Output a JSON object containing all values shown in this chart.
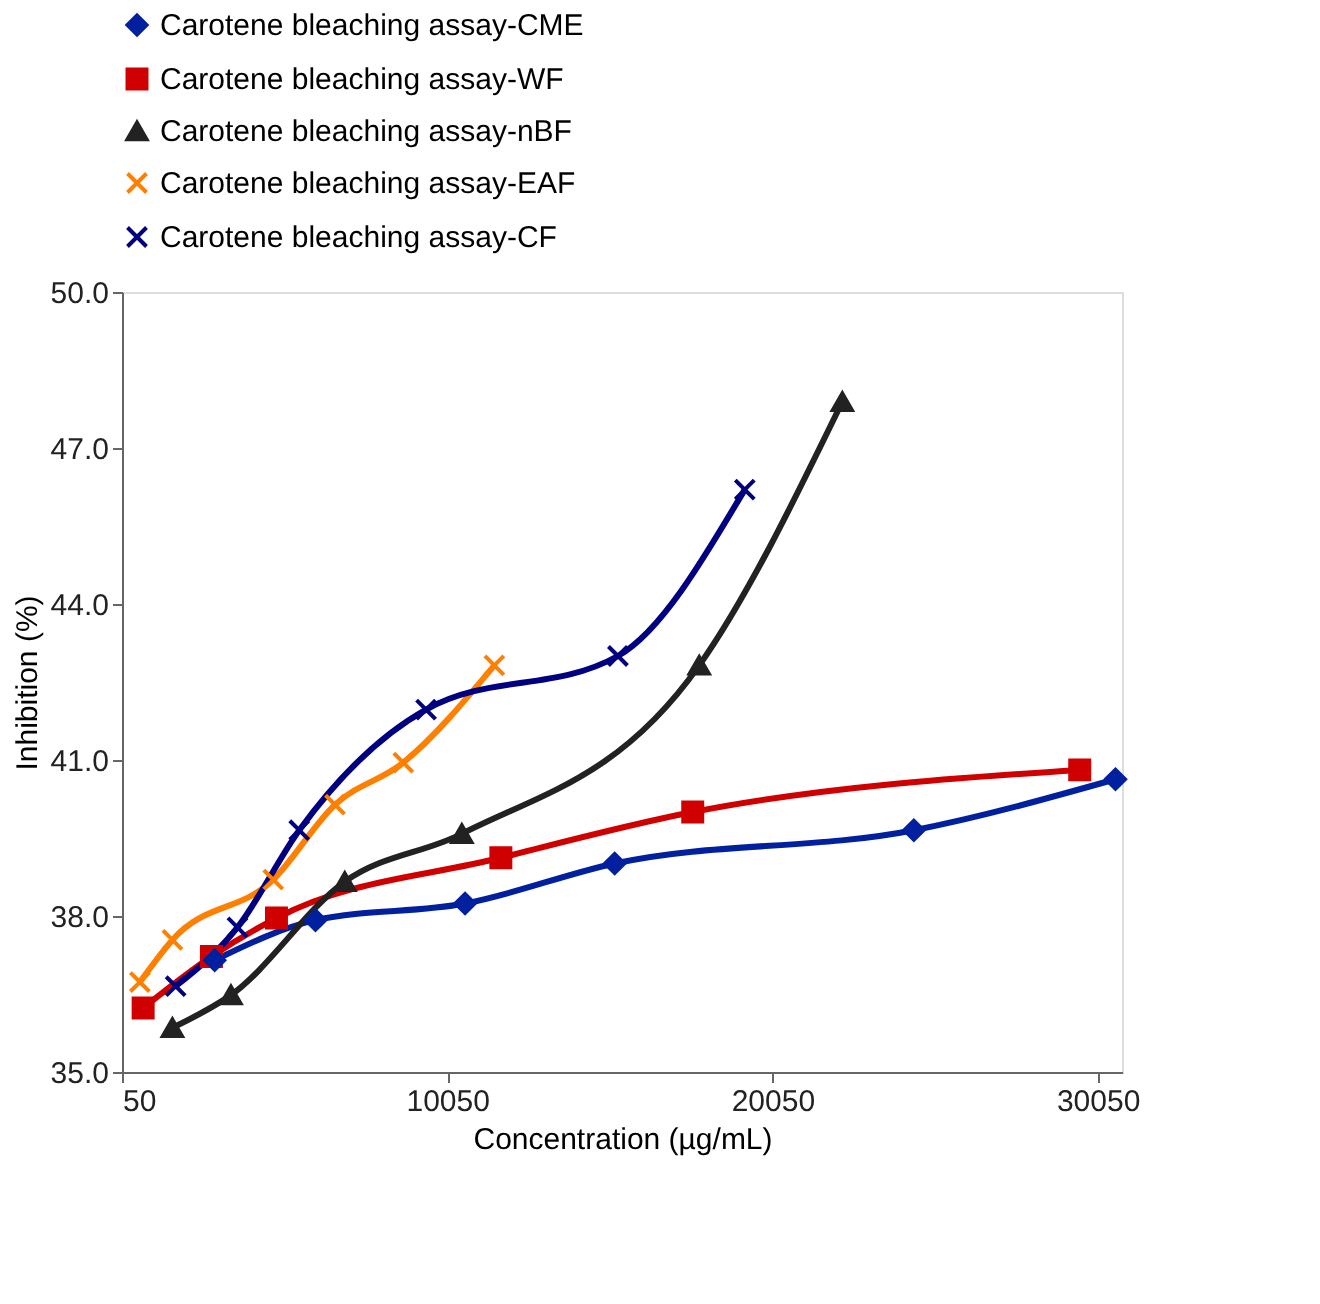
{
  "chart_data": {
    "type": "line",
    "xlabel": "Concentration (µg/mL)",
    "ylabel": "Inhibition (%)",
    "xlim": [
      50,
      30800
    ],
    "xticks": [
      50,
      10050,
      20050,
      30050
    ],
    "ylim": [
      35,
      50
    ],
    "yticks": [
      {
        "value": 35,
        "label": "35.0"
      },
      {
        "value": 38,
        "label": "38.0"
      },
      {
        "value": 41,
        "label": "41.0"
      },
      {
        "value": 44,
        "label": "44.0"
      },
      {
        "value": 47,
        "label": "47.0"
      },
      {
        "value": 50,
        "label": "50.0"
      }
    ],
    "grid": false,
    "legend": "top",
    "line_style": "solid",
    "series": [
      {
        "name": "Carotene bleaching assay-CME",
        "color": "#00209f",
        "marker": "diamond",
        "x": [
          2900,
          6000,
          10600,
          15200,
          24400,
          30600
        ],
        "values": [
          37.15,
          37.92,
          38.24,
          39.01,
          39.65,
          40.63
        ]
      },
      {
        "name": "Carotene bleaching assay-WF",
        "color": "#d00000",
        "marker": "square",
        "x": [
          700,
          2800,
          4800,
          11700,
          17600,
          29500
        ],
        "values": [
          36.23,
          37.22,
          37.96,
          39.12,
          40.0,
          40.81
        ]
      },
      {
        "name": "Carotene bleaching assay-nBF",
        "color": "#222222",
        "marker": "triangle",
        "x": [
          1600,
          3400,
          6900,
          10500,
          17800,
          22200
        ],
        "values": [
          35.85,
          36.48,
          38.66,
          39.58,
          42.82,
          47.89
        ]
      },
      {
        "name": "Carotene bleaching assay-EAF",
        "color": "#ff8000",
        "marker": "cross",
        "x": [
          600,
          1600,
          4700,
          6600,
          8700,
          11500
        ],
        "values": [
          36.73,
          37.54,
          38.7,
          40.14,
          40.95,
          42.82
        ]
      },
      {
        "name": "Carotene bleaching assay-CF",
        "color": "#000080",
        "marker": "cross",
        "x": [
          1700,
          3600,
          5500,
          9400,
          15300,
          19200
        ],
        "values": [
          36.65,
          37.78,
          39.65,
          41.97,
          43.0,
          46.2
        ]
      }
    ]
  }
}
